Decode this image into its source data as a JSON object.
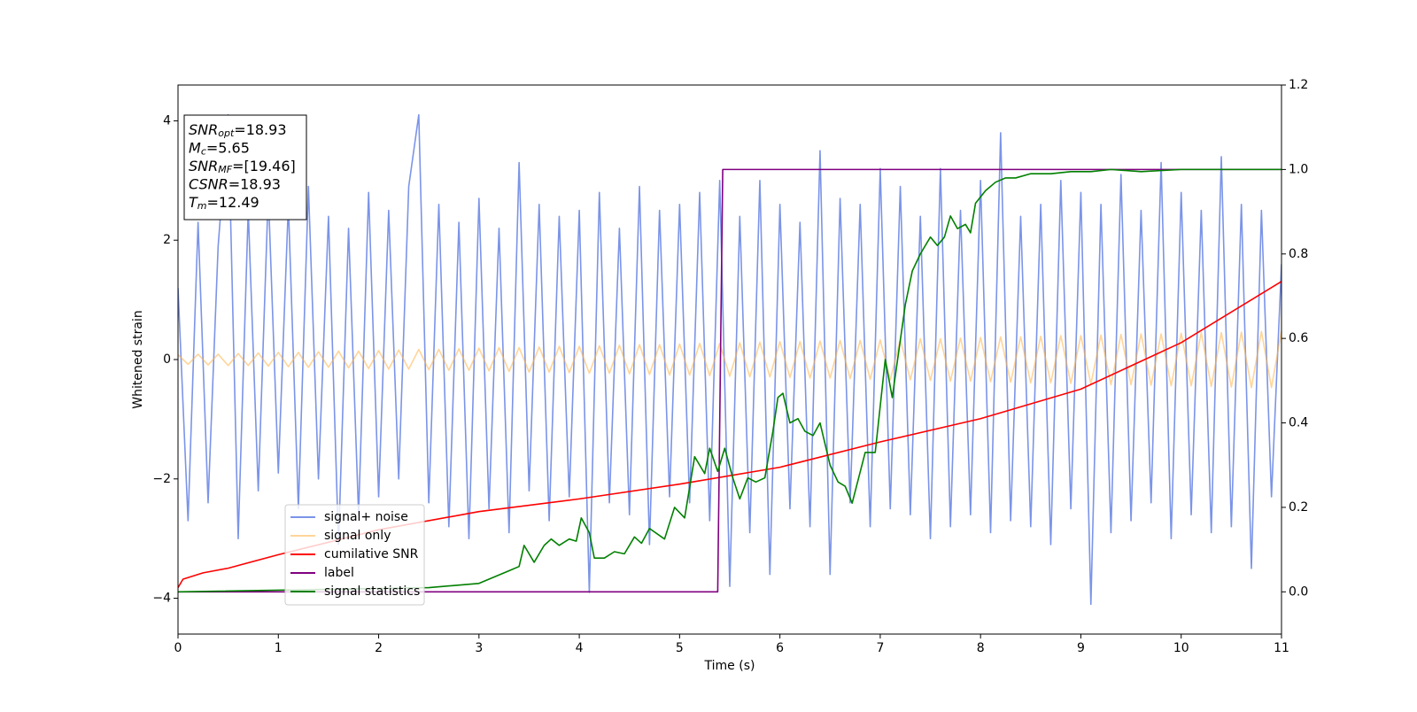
{
  "chart_data": {
    "type": "line",
    "xlabel": "Time (s)",
    "ylabel": "Whitened strain",
    "xlim": [
      0,
      11
    ],
    "xticks": [
      0,
      1,
      2,
      3,
      4,
      5,
      6,
      7,
      8,
      9,
      10,
      11
    ],
    "ylim": [
      -4.6,
      4.6
    ],
    "yticks": [
      -4,
      -2,
      0,
      2,
      4
    ],
    "y2lim": [
      -0.1,
      1.2
    ],
    "y2ticks": [
      {
        "value": 0,
        "label": "0.0"
      },
      0.2,
      0.4,
      0.6,
      0.8,
      {
        "value": 1,
        "label": "1.0"
      },
      1.2
    ],
    "legend_loc": "lower left",
    "x": [
      0,
      0.1,
      0.2,
      0.3,
      0.4,
      0.5,
      0.6,
      0.7,
      0.8,
      0.9,
      1,
      1.1,
      1.2,
      1.3,
      1.4,
      1.5,
      1.6,
      1.7,
      1.8,
      1.9,
      2,
      2.1,
      2.2,
      2.3,
      2.4,
      2.5,
      2.6,
      2.7,
      2.8,
      2.9,
      3,
      3.1,
      3.2,
      3.3,
      3.4,
      3.5,
      3.6,
      3.7,
      3.8,
      3.9,
      4,
      4.1,
      4.2,
      4.3,
      4.4,
      4.5,
      4.6,
      4.7,
      4.8,
      4.9,
      5,
      5.1,
      5.2,
      5.3,
      5.4,
      5.5,
      5.6,
      5.7,
      5.8,
      5.9,
      6,
      6.1,
      6.2,
      6.3,
      6.4,
      6.5,
      6.6,
      6.7,
      6.8,
      6.9,
      7,
      7.1,
      7.2,
      7.3,
      7.4,
      7.5,
      7.6,
      7.7,
      7.8,
      7.9,
      8,
      8.1,
      8.2,
      8.3,
      8.4,
      8.5,
      8.6,
      8.7,
      8.8,
      8.9,
      9,
      9.1,
      9.2,
      9.3,
      9.4,
      9.5,
      9.6,
      9.7,
      9.8,
      9.9,
      10,
      10.1,
      10.2,
      10.3,
      10.4,
      10.5,
      10.6,
      10.7,
      10.8,
      10.9,
      11
    ],
    "series": [
      {
        "name": "signal+ noise",
        "color": "#7b94e8",
        "opacity": 1,
        "values": [
          1.2,
          -2.7,
          2.3,
          -2.4,
          1.9,
          4.1,
          -3.0,
          2.5,
          -2.2,
          2.8,
          -1.9,
          2.6,
          -2.5,
          2.9,
          -2.0,
          2.4,
          -3.1,
          2.2,
          -2.6,
          2.8,
          -2.3,
          2.5,
          -2.0,
          2.9,
          4.1,
          -2.4,
          2.6,
          -2.8,
          2.3,
          -3.0,
          2.7,
          -2.5,
          2.2,
          -2.9,
          3.3,
          -2.2,
          2.6,
          -2.7,
          2.4,
          -2.3,
          2.5,
          -3.9,
          2.8,
          -2.4,
          2.2,
          -2.6,
          2.9,
          -3.1,
          2.5,
          -2.3,
          2.6,
          -2.4,
          2.8,
          -2.7,
          3.0,
          -3.8,
          2.4,
          -2.9,
          3.0,
          -3.6,
          2.6,
          -2.5,
          2.3,
          -2.8,
          3.5,
          -3.6,
          2.7,
          -2.4,
          2.6,
          -2.8,
          3.2,
          -2.5,
          2.9,
          -2.6,
          2.4,
          -3.0,
          3.2,
          -2.8,
          2.5,
          -2.6,
          3.0,
          -2.9,
          3.8,
          -2.7,
          2.4,
          -2.8,
          2.6,
          -3.1,
          3.0,
          -2.5,
          2.8,
          -4.1,
          2.6,
          -2.9,
          3.1,
          -2.7,
          2.5,
          -2.4,
          3.3,
          -3.0,
          2.8,
          -2.6,
          2.5,
          -2.9,
          3.4,
          -2.8,
          2.6,
          -3.5,
          2.5,
          -2.3,
          1.6
        ]
      },
      {
        "name": "signal only",
        "color": "#ffb347",
        "opacity": 0.55,
        "values": [
          0.08,
          -0.08,
          0.09,
          -0.09,
          0.09,
          -0.1,
          0.1,
          -0.1,
          0.11,
          -0.11,
          0.12,
          -0.12,
          0.12,
          -0.13,
          0.13,
          -0.13,
          0.14,
          -0.14,
          0.14,
          -0.15,
          0.15,
          -0.16,
          0.16,
          -0.16,
          0.17,
          -0.17,
          0.17,
          -0.18,
          0.18,
          -0.18,
          0.19,
          -0.19,
          0.2,
          -0.2,
          0.2,
          -0.21,
          0.21,
          -0.21,
          0.22,
          -0.22,
          0.22,
          -0.23,
          0.23,
          -0.23,
          0.24,
          -0.24,
          0.25,
          -0.25,
          0.25,
          -0.26,
          0.26,
          -0.26,
          0.27,
          -0.27,
          0.27,
          -0.28,
          0.28,
          -0.29,
          0.29,
          -0.29,
          0.3,
          -0.3,
          0.3,
          -0.31,
          0.31,
          -0.31,
          0.32,
          -0.32,
          0.32,
          -0.33,
          0.33,
          -0.34,
          0.34,
          -0.34,
          0.35,
          -0.35,
          0.35,
          -0.36,
          0.36,
          -0.36,
          0.37,
          -0.37,
          0.38,
          -0.38,
          0.38,
          -0.39,
          0.39,
          -0.39,
          0.4,
          -0.4,
          0.4,
          -0.41,
          0.41,
          -0.42,
          0.42,
          -0.42,
          0.43,
          -0.43,
          0.43,
          -0.44,
          0.44,
          -0.44,
          0.45,
          -0.45,
          0.45,
          -0.46,
          0.46,
          -0.47,
          0.47,
          -0.47,
          0.48
        ]
      },
      {
        "name": "cumilative SNR",
        "color": "#ff0000",
        "opacity": 1,
        "axis": "y2",
        "x": [
          0,
          0.05,
          0.25,
          0.5,
          1,
          2,
          3,
          4,
          5,
          6,
          7,
          8,
          9,
          10,
          11
        ],
        "values": [
          0.01,
          0.03,
          0.045,
          0.056,
          0.088,
          0.147,
          0.19,
          0.22,
          0.255,
          0.295,
          0.355,
          0.41,
          0.48,
          0.59,
          0.735
        ]
      },
      {
        "name": "label",
        "color": "#800080",
        "opacity": 1,
        "axis": "y2",
        "x": [
          0,
          5.38,
          5.43,
          11
        ],
        "values": [
          0,
          0,
          1,
          1
        ]
      },
      {
        "name": "signal statistics",
        "color": "#008000",
        "opacity": 1,
        "axis": "y2",
        "x": [
          0,
          2.5,
          3.0,
          3.3,
          3.4,
          3.45,
          3.55,
          3.65,
          3.72,
          3.8,
          3.9,
          3.97,
          4.02,
          4.1,
          4.15,
          4.25,
          4.35,
          4.45,
          4.55,
          4.62,
          4.7,
          4.85,
          4.95,
          5.05,
          5.15,
          5.25,
          5.3,
          5.38,
          5.45,
          5.53,
          5.6,
          5.68,
          5.76,
          5.85,
          5.93,
          5.98,
          6.03,
          6.1,
          6.18,
          6.25,
          6.33,
          6.4,
          6.5,
          6.58,
          6.65,
          6.72,
          6.85,
          6.95,
          7.05,
          7.12,
          7.25,
          7.32,
          7.4,
          7.5,
          7.57,
          7.64,
          7.7,
          7.77,
          7.85,
          7.9,
          7.95,
          8.05,
          8.15,
          8.25,
          8.35,
          8.5,
          8.7,
          8.9,
          9.1,
          9.3,
          9.6,
          10,
          11
        ],
        "values": [
          0,
          0.01,
          0.02,
          0.05,
          0.06,
          0.11,
          0.07,
          0.11,
          0.125,
          0.11,
          0.125,
          0.12,
          0.175,
          0.14,
          0.08,
          0.08,
          0.095,
          0.09,
          0.13,
          0.115,
          0.15,
          0.125,
          0.2,
          0.175,
          0.32,
          0.28,
          0.34,
          0.285,
          0.34,
          0.27,
          0.22,
          0.27,
          0.26,
          0.27,
          0.38,
          0.46,
          0.47,
          0.4,
          0.41,
          0.38,
          0.37,
          0.4,
          0.3,
          0.26,
          0.25,
          0.21,
          0.33,
          0.33,
          0.55,
          0.46,
          0.68,
          0.76,
          0.8,
          0.84,
          0.82,
          0.84,
          0.89,
          0.86,
          0.87,
          0.85,
          0.92,
          0.95,
          0.97,
          0.98,
          0.98,
          0.99,
          0.99,
          0.995,
          0.995,
          1,
          0.995,
          1,
          1
        ]
      }
    ],
    "annotation": [
      {
        "text": "SNR",
        "sub": "opt",
        "value": "=18.93"
      },
      {
        "text": "M",
        "sub": "c",
        "value": "=5.65"
      },
      {
        "text": "SNR",
        "sub": "MF",
        "value": "=[19.46]"
      },
      {
        "text": "CSNR",
        "value": "=18.93"
      },
      {
        "text": "T",
        "sub": "m",
        "value": "=12.49"
      }
    ]
  }
}
